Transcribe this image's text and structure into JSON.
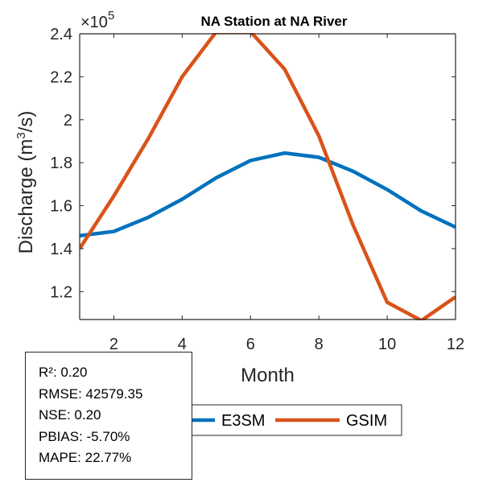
{
  "chart_data": {
    "type": "line",
    "title": "NA  Station at  NA  River",
    "xlabel": "Month",
    "ylabel": "Discharge (m³/s)",
    "ylabel_parts": {
      "pre": "Discharge (m",
      "sup": "3",
      "post": "/s)"
    },
    "y_multiplier": {
      "prefix": "×10",
      "exponent": "5"
    },
    "xlim": [
      1,
      12
    ],
    "ylim": [
      1.07,
      2.4
    ],
    "y_scale_note": "values in units of 1e5 m^3/s",
    "xticks": [
      2,
      4,
      6,
      8,
      10,
      12
    ],
    "xtick_labels": [
      "2",
      "4",
      "6",
      "8",
      "10",
      "12"
    ],
    "yticks": [
      1.2,
      1.4,
      1.6,
      1.8,
      2.0,
      2.2,
      2.4
    ],
    "ytick_labels": [
      "1.2",
      "1.4",
      "1.6",
      "1.8",
      "2",
      "2.2",
      "2.4"
    ],
    "grid": false,
    "legend_placement": "bottom-outside",
    "x": [
      1,
      2,
      3,
      4,
      5,
      6,
      7,
      8,
      9,
      10,
      11,
      12
    ],
    "series": [
      {
        "name": "E3SM",
        "color": "#0072BD",
        "values": [
          1.46,
          1.48,
          1.545,
          1.63,
          1.73,
          1.81,
          1.845,
          1.825,
          1.76,
          1.675,
          1.575,
          1.5
        ]
      },
      {
        "name": "GSIM",
        "color": "#D95319",
        "values": [
          1.4,
          1.645,
          1.91,
          2.2,
          2.41,
          2.41,
          2.235,
          1.925,
          1.51,
          1.15,
          1.065,
          1.175
        ]
      }
    ]
  },
  "stats": {
    "lines": [
      "R²: 0.20",
      "RMSE: 42579.35",
      "NSE: 0.20",
      "PBIAS: -5.70%",
      "MAPE: 22.77%"
    ]
  }
}
